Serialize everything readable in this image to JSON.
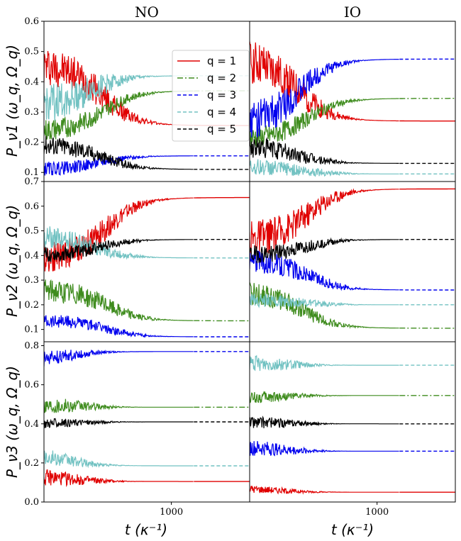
{
  "col_titles": [
    "NO",
    "IO"
  ],
  "xlabel": "t (κ⁻¹)",
  "ylabels": [
    "P_ν1 (ω_q, Ω_q)",
    "P_ν2 (ω_q, Ω_q)",
    "P_ν3 (ω_q, Ω_q)"
  ],
  "legend": [
    "q = 1",
    "q = 2",
    "q = 3",
    "q = 4",
    "q = 5"
  ],
  "colors": {
    "q1": "#e00000",
    "q2": "#3f8c1e",
    "q3": "#0000ee",
    "q4": "#72c2c2",
    "q5": "#000000"
  },
  "chart_data": {
    "type": "line",
    "xscale": "log",
    "xlim": [
      225,
      2500
    ],
    "xticks": [
      1000
    ],
    "xtick_labels": [
      "1000"
    ],
    "rows": [
      {
        "ylim": [
          0.07,
          0.6
        ],
        "yticks": [
          0.1,
          0.2,
          0.3,
          0.4,
          0.5,
          0.6
        ],
        "ytick_labels": [
          "0.1",
          "0.2",
          "0.3",
          "0.4",
          "0.5",
          "0.6"
        ]
      },
      {
        "ylim": [
          0.05,
          0.7
        ],
        "yticks": [
          0.1,
          0.2,
          0.3,
          0.4,
          0.5,
          0.6,
          0.7
        ],
        "ytick_labels": [
          "0.1",
          "0.2",
          "0.3",
          "0.4",
          "0.5",
          "0.6",
          "0.7"
        ]
      },
      {
        "ylim": [
          0.0,
          0.82
        ],
        "yticks": [
          0.0,
          0.2,
          0.4,
          0.6,
          0.8
        ],
        "ytick_labels": [
          "0.0",
          "0.2",
          "0.4",
          "0.6",
          "0.8"
        ]
      }
    ],
    "panels": [
      {
        "row": 0,
        "col": 0,
        "series": [
          {
            "q": 1,
            "start": 0.46,
            "end": 0.255,
            "tmid": 440,
            "noise": 0.07
          },
          {
            "q": 2,
            "start": 0.235,
            "end": 0.37,
            "tmid": 450,
            "noise": 0.04
          },
          {
            "q": 3,
            "start": 0.11,
            "end": 0.155,
            "tmid": 430,
            "noise": 0.025
          },
          {
            "q": 4,
            "start": 0.32,
            "end": 0.42,
            "tmid": 380,
            "noise": 0.07
          },
          {
            "q": 5,
            "start": 0.195,
            "end": 0.11,
            "tmid": 440,
            "noise": 0.035
          }
        ]
      },
      {
        "row": 0,
        "col": 1,
        "series": [
          {
            "q": 1,
            "start": 0.48,
            "end": 0.27,
            "tmid": 390,
            "noise": 0.08
          },
          {
            "q": 2,
            "start": 0.21,
            "end": 0.345,
            "tmid": 440,
            "noise": 0.04
          },
          {
            "q": 3,
            "start": 0.26,
            "end": 0.475,
            "tmid": 400,
            "noise": 0.07
          },
          {
            "q": 4,
            "start": 0.12,
            "end": 0.095,
            "tmid": 400,
            "noise": 0.03
          },
          {
            "q": 5,
            "start": 0.19,
            "end": 0.13,
            "tmid": 380,
            "noise": 0.04
          }
        ]
      },
      {
        "row": 1,
        "col": 0,
        "series": [
          {
            "q": 1,
            "start": 0.39,
            "end": 0.635,
            "tmid": 470,
            "noise": 0.07
          },
          {
            "q": 2,
            "start": 0.26,
            "end": 0.135,
            "tmid": 470,
            "noise": 0.05
          },
          {
            "q": 3,
            "start": 0.14,
            "end": 0.07,
            "tmid": 450,
            "noise": 0.03
          },
          {
            "q": 4,
            "start": 0.48,
            "end": 0.39,
            "tmid": 400,
            "noise": 0.05
          },
          {
            "q": 5,
            "start": 0.4,
            "end": 0.465,
            "tmid": 420,
            "noise": 0.035
          }
        ]
      },
      {
        "row": 1,
        "col": 1,
        "series": [
          {
            "q": 1,
            "start": 0.46,
            "end": 0.67,
            "tmid": 440,
            "noise": 0.08
          },
          {
            "q": 2,
            "start": 0.25,
            "end": 0.105,
            "tmid": 420,
            "noise": 0.05
          },
          {
            "q": 3,
            "start": 0.38,
            "end": 0.26,
            "tmid": 440,
            "noise": 0.05
          },
          {
            "q": 4,
            "start": 0.22,
            "end": 0.2,
            "tmid": 400,
            "noise": 0.03
          },
          {
            "q": 5,
            "start": 0.4,
            "end": 0.465,
            "tmid": 420,
            "noise": 0.04
          }
        ]
      },
      {
        "row": 2,
        "col": 0,
        "series": [
          {
            "q": 1,
            "start": 0.13,
            "end": 0.105,
            "tmid": 300,
            "noise": 0.05
          },
          {
            "q": 2,
            "start": 0.5,
            "end": 0.485,
            "tmid": 300,
            "noise": 0.05
          },
          {
            "q": 3,
            "start": 0.72,
            "end": 0.77,
            "tmid": 280,
            "noise": 0.05
          },
          {
            "q": 4,
            "start": 0.25,
            "end": 0.185,
            "tmid": 280,
            "noise": 0.05
          },
          {
            "q": 5,
            "start": 0.4,
            "end": 0.41,
            "tmid": 300,
            "noise": 0.03
          }
        ]
      },
      {
        "row": 2,
        "col": 1,
        "series": [
          {
            "q": 1,
            "start": 0.07,
            "end": 0.05,
            "tmid": 300,
            "noise": 0.025
          },
          {
            "q": 2,
            "start": 0.53,
            "end": 0.545,
            "tmid": 300,
            "noise": 0.04
          },
          {
            "q": 3,
            "start": 0.28,
            "end": 0.26,
            "tmid": 300,
            "noise": 0.05
          },
          {
            "q": 4,
            "start": 0.71,
            "end": 0.7,
            "tmid": 300,
            "noise": 0.05
          },
          {
            "q": 5,
            "start": 0.41,
            "end": 0.4,
            "tmid": 300,
            "noise": 0.04
          }
        ]
      }
    ]
  }
}
